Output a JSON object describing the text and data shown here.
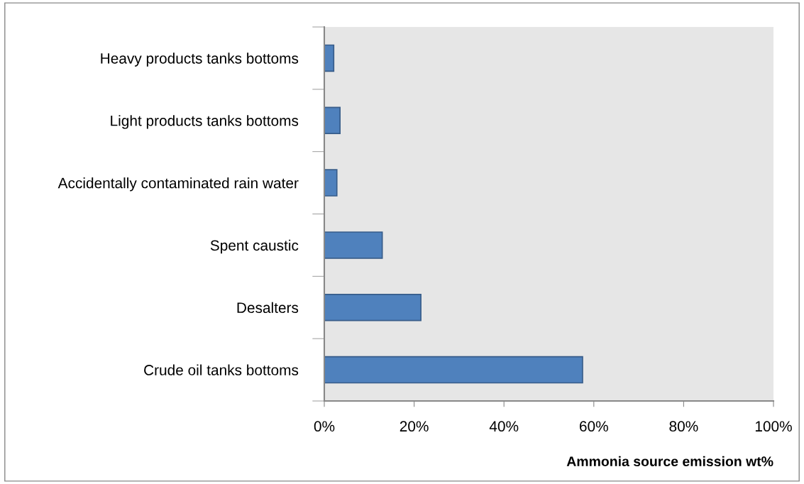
{
  "chart_data": {
    "type": "bar",
    "orientation": "horizontal",
    "xlabel": "Ammonia source emission wt%",
    "categories": [
      "Heavy products tanks bottoms",
      "Light products tanks bottoms",
      "Accidentally contaminated rain water",
      "Spent caustic",
      "Desalters",
      "Crude oil tanks bottoms"
    ],
    "values": [
      2.1,
      3.5,
      2.8,
      12.9,
      21.5,
      57.5
    ],
    "color": "#4f81bd",
    "xlim": [
      0,
      100
    ],
    "xticks": [
      {
        "value": 0,
        "label": "0%"
      },
      {
        "value": 20,
        "label": "20%"
      },
      {
        "value": 40,
        "label": "40%"
      },
      {
        "value": 60,
        "label": "60%"
      },
      {
        "value": 80,
        "label": "80%"
      },
      {
        "value": 100,
        "label": "100%"
      }
    ],
    "grid": false
  }
}
